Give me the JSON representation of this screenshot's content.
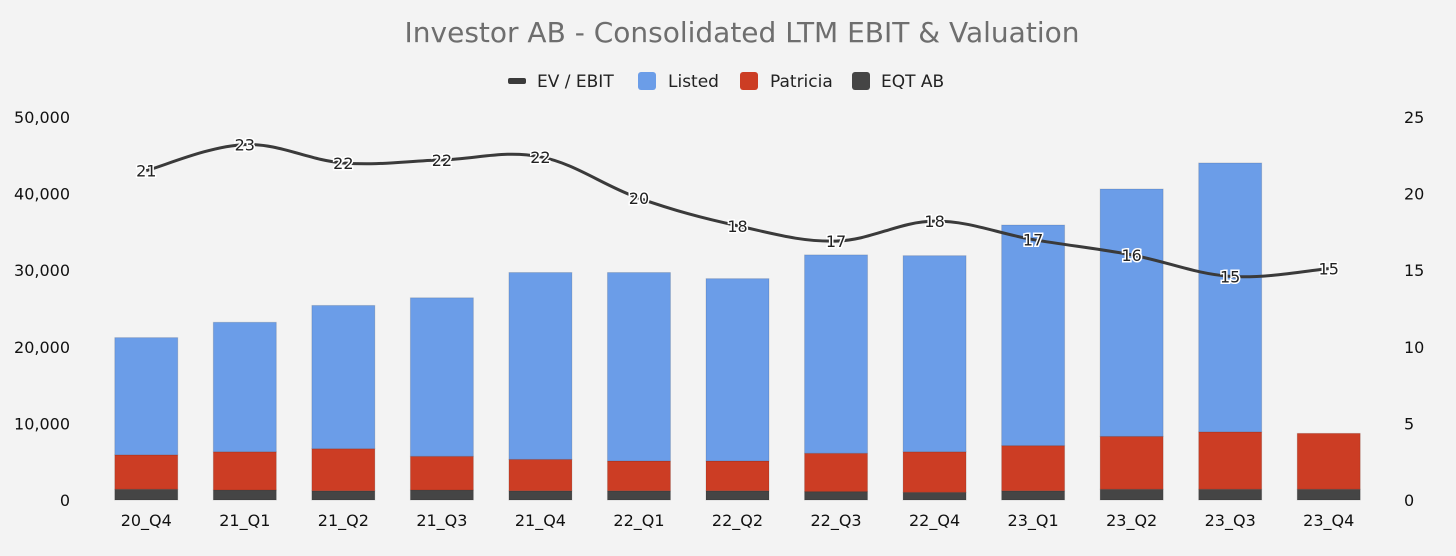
{
  "chart_data": {
    "type": "bar",
    "title": "Investor AB - Consolidated LTM EBIT & Valuation",
    "categories": [
      "20_Q4",
      "21_Q1",
      "21_Q2",
      "21_Q3",
      "21_Q4",
      "22_Q1",
      "22_Q2",
      "22_Q3",
      "22_Q4",
      "23_Q1",
      "23_Q2",
      "23_Q3",
      "23_Q4"
    ],
    "stacked": true,
    "series": [
      {
        "name": "EQT AB",
        "kind": "bar",
        "axis": "left",
        "color": "#454545",
        "values": [
          1400,
          1300,
          1200,
          1300,
          1200,
          1200,
          1200,
          1100,
          1000,
          1200,
          1400,
          1400,
          1400
        ]
      },
      {
        "name": "Patricia",
        "kind": "bar",
        "axis": "left",
        "color": "#cc3d24",
        "values": [
          4500,
          5000,
          5500,
          4400,
          4100,
          3900,
          3900,
          5000,
          5300,
          5900,
          6900,
          7500,
          7300
        ]
      },
      {
        "name": "Listed",
        "kind": "bar",
        "axis": "left",
        "color": "#6b9de8",
        "values": [
          15300,
          16900,
          18700,
          20700,
          24400,
          24600,
          23800,
          25900,
          25600,
          28800,
          32300,
          35100,
          0
        ]
      },
      {
        "name": "EV / EBIT",
        "kind": "line",
        "axis": "right",
        "color": "#3a3a3a",
        "values": [
          21.5,
          23.2,
          22.0,
          22.2,
          22.4,
          19.7,
          17.9,
          16.9,
          18.2,
          17.0,
          16.0,
          14.6,
          15.1
        ],
        "labels": [
          "21",
          "23",
          "22",
          "22",
          "22",
          "20",
          "18",
          "17",
          "18",
          "17",
          "16",
          "15",
          "15"
        ]
      }
    ],
    "legend_order": [
      "EV / EBIT",
      "Listed",
      "Patricia",
      "EQT AB"
    ],
    "legend_position": "top-center",
    "y_left": {
      "min": 0,
      "max": 50000,
      "ticks": [
        "0",
        "10,000",
        "20,000",
        "30,000",
        "40,000",
        "50,000"
      ]
    },
    "y_right": {
      "min": 0,
      "max": 25,
      "ticks": [
        "0",
        "5",
        "10",
        "15",
        "20",
        "25"
      ]
    },
    "grid": false
  }
}
